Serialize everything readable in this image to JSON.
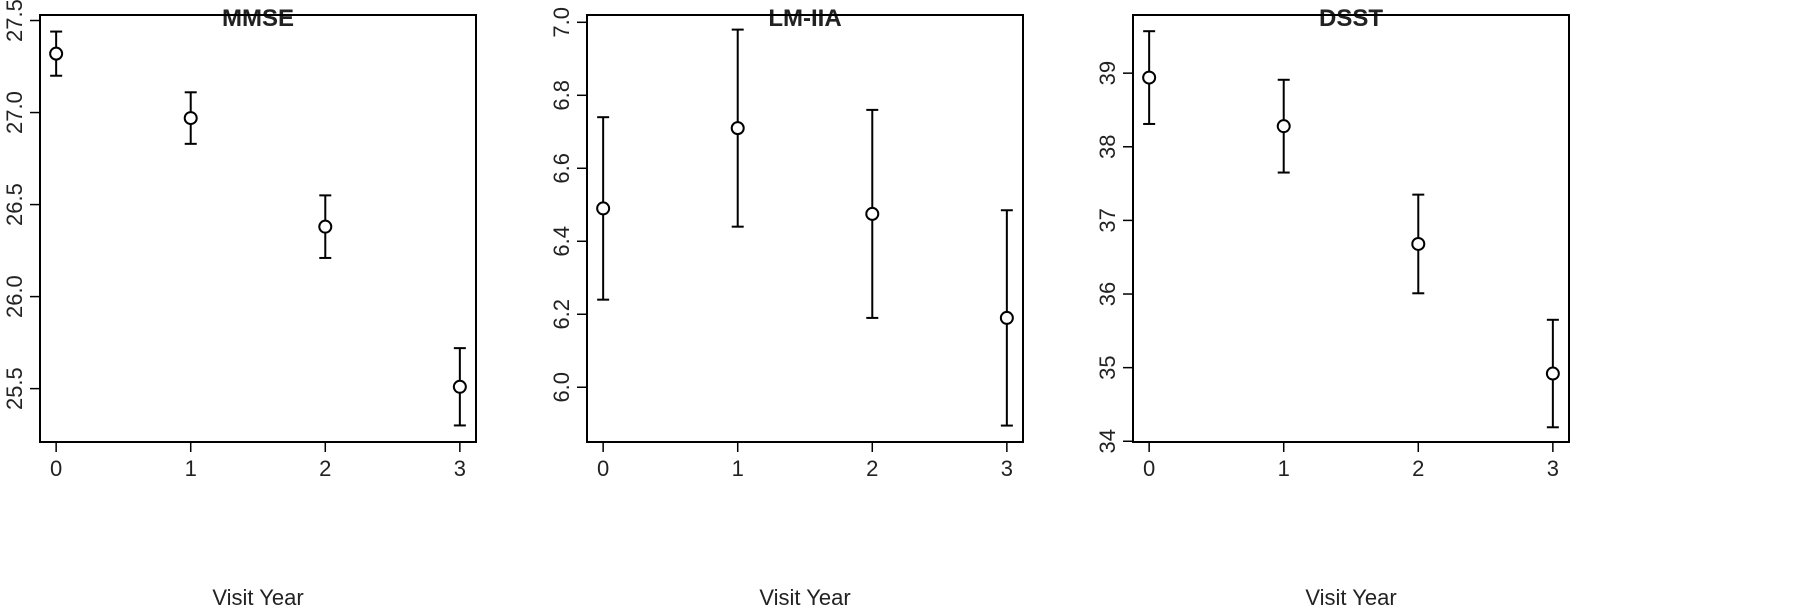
{
  "chart_data": [
    {
      "type": "scatter",
      "title": "MMSE",
      "x_label": "Visit Year",
      "x": [
        0,
        1,
        2,
        3
      ],
      "values": [
        27.32,
        26.97,
        26.38,
        25.51
      ],
      "errors": [
        0.12,
        0.14,
        0.17,
        0.21
      ],
      "xlim": [
        -0.12,
        3.12
      ],
      "xticks": [
        0,
        1,
        2,
        3
      ],
      "ylim": [
        25.21,
        27.53
      ],
      "yticks": [
        {
          "value": 25.5,
          "label": "25.5"
        },
        {
          "value": 26,
          "label": "26.0"
        },
        {
          "value": 26.5,
          "label": "26.5"
        },
        {
          "value": 27,
          "label": "27.0"
        },
        {
          "value": 27.5,
          "label": "27.5"
        }
      ],
      "color": "#000000"
    },
    {
      "type": "scatter",
      "title": "LM-IIA",
      "x_label": "Visit Year",
      "x": [
        0,
        1,
        2,
        3
      ],
      "values": [
        6.49,
        6.71,
        6.475,
        6.19
      ],
      "errors": [
        0.25,
        0.27,
        0.285,
        0.295
      ],
      "xlim": [
        -0.12,
        3.12
      ],
      "xticks": [
        0,
        1,
        2,
        3
      ],
      "ylim": [
        5.85,
        7.02
      ],
      "yticks": [
        {
          "value": 6,
          "label": "6.0"
        },
        6.2,
        6.4,
        6.6,
        6.8,
        {
          "value": 7,
          "label": "7.0"
        }
      ],
      "color": "#000000"
    },
    {
      "type": "scatter",
      "title": "DSST",
      "x_label": "Visit Year",
      "x": [
        0,
        1,
        2,
        3
      ],
      "values": [
        38.94,
        38.28,
        36.68,
        34.92
      ],
      "errors": [
        0.63,
        0.63,
        0.67,
        0.73
      ],
      "xlim": [
        -0.12,
        3.12
      ],
      "xticks": [
        0,
        1,
        2,
        3
      ],
      "ylim": [
        33.99,
        39.79
      ],
      "yticks": [
        34,
        35,
        36,
        37,
        38,
        39
      ],
      "color": "#000000"
    }
  ]
}
